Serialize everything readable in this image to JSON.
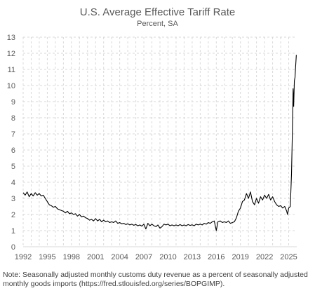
{
  "chart_data": {
    "type": "line",
    "title": "U.S. Average Effective Tariff Rate",
    "subtitle": "Percent, SA",
    "xlabel": "",
    "ylabel": "",
    "xlim": [
      1992,
      2026
    ],
    "ylim": [
      0,
      13
    ],
    "x_ticks": [
      "1992",
      "1995",
      "1998",
      "2001",
      "2004",
      "2007",
      "2010",
      "2013",
      "2016",
      "2019",
      "2022",
      "2025"
    ],
    "y_ticks": [
      "0",
      "1",
      "2",
      "3",
      "4",
      "5",
      "6",
      "7",
      "8",
      "9",
      "10",
      "11",
      "12",
      "13"
    ],
    "grid": "dashed",
    "line_color": "#000000",
    "series": [
      {
        "points": [
          [
            1992.0,
            3.35
          ],
          [
            1992.25,
            3.2
          ],
          [
            1992.5,
            3.4
          ],
          [
            1992.75,
            3.1
          ],
          [
            1993.0,
            3.3
          ],
          [
            1993.25,
            3.15
          ],
          [
            1993.5,
            3.35
          ],
          [
            1993.75,
            3.2
          ],
          [
            1994.0,
            3.3
          ],
          [
            1994.25,
            3.15
          ],
          [
            1994.5,
            3.2
          ],
          [
            1994.75,
            3.0
          ],
          [
            1995.0,
            2.8
          ],
          [
            1995.25,
            2.6
          ],
          [
            1995.5,
            2.55
          ],
          [
            1995.75,
            2.45
          ],
          [
            1996.0,
            2.5
          ],
          [
            1996.25,
            2.35
          ],
          [
            1996.5,
            2.3
          ],
          [
            1996.75,
            2.25
          ],
          [
            1997.0,
            2.2
          ],
          [
            1997.25,
            2.1
          ],
          [
            1997.5,
            2.2
          ],
          [
            1997.75,
            2.05
          ],
          [
            1998.0,
            2.1
          ],
          [
            1998.25,
            2.0
          ],
          [
            1998.5,
            2.05
          ],
          [
            1998.75,
            1.9
          ],
          [
            1999.0,
            2.0
          ],
          [
            1999.25,
            1.85
          ],
          [
            1999.5,
            1.9
          ],
          [
            1999.75,
            1.8
          ],
          [
            2000.0,
            1.75
          ],
          [
            2000.25,
            1.65
          ],
          [
            2000.5,
            1.7
          ],
          [
            2000.75,
            1.6
          ],
          [
            2001.0,
            1.75
          ],
          [
            2001.25,
            1.6
          ],
          [
            2001.5,
            1.7
          ],
          [
            2001.75,
            1.55
          ],
          [
            2002.0,
            1.65
          ],
          [
            2002.25,
            1.55
          ],
          [
            2002.5,
            1.6
          ],
          [
            2002.75,
            1.5
          ],
          [
            2003.0,
            1.55
          ],
          [
            2003.25,
            1.5
          ],
          [
            2003.5,
            1.6
          ],
          [
            2003.75,
            1.45
          ],
          [
            2004.0,
            1.5
          ],
          [
            2004.25,
            1.42
          ],
          [
            2004.5,
            1.45
          ],
          [
            2004.75,
            1.38
          ],
          [
            2005.0,
            1.42
          ],
          [
            2005.25,
            1.35
          ],
          [
            2005.5,
            1.4
          ],
          [
            2005.75,
            1.33
          ],
          [
            2006.0,
            1.38
          ],
          [
            2006.25,
            1.3
          ],
          [
            2006.5,
            1.35
          ],
          [
            2006.75,
            1.28
          ],
          [
            2007.0,
            1.4
          ],
          [
            2007.25,
            1.1
          ],
          [
            2007.5,
            1.45
          ],
          [
            2007.75,
            1.3
          ],
          [
            2008.0,
            1.4
          ],
          [
            2008.25,
            1.3
          ],
          [
            2008.5,
            1.25
          ],
          [
            2008.75,
            1.35
          ],
          [
            2009.0,
            1.15
          ],
          [
            2009.25,
            1.25
          ],
          [
            2009.5,
            1.4
          ],
          [
            2009.75,
            1.35
          ],
          [
            2010.0,
            1.4
          ],
          [
            2010.25,
            1.3
          ],
          [
            2010.5,
            1.35
          ],
          [
            2010.75,
            1.3
          ],
          [
            2011.0,
            1.35
          ],
          [
            2011.25,
            1.3
          ],
          [
            2011.5,
            1.38
          ],
          [
            2011.75,
            1.3
          ],
          [
            2012.0,
            1.35
          ],
          [
            2012.25,
            1.3
          ],
          [
            2012.5,
            1.38
          ],
          [
            2012.75,
            1.32
          ],
          [
            2013.0,
            1.36
          ],
          [
            2013.25,
            1.3
          ],
          [
            2013.5,
            1.4
          ],
          [
            2013.75,
            1.35
          ],
          [
            2014.0,
            1.4
          ],
          [
            2014.25,
            1.35
          ],
          [
            2014.5,
            1.45
          ],
          [
            2014.75,
            1.4
          ],
          [
            2015.0,
            1.5
          ],
          [
            2015.25,
            1.45
          ],
          [
            2015.5,
            1.55
          ],
          [
            2015.75,
            1.6
          ],
          [
            2016.0,
            1.0
          ],
          [
            2016.2,
            1.55
          ],
          [
            2016.5,
            1.6
          ],
          [
            2016.75,
            1.5
          ],
          [
            2017.0,
            1.55
          ],
          [
            2017.25,
            1.5
          ],
          [
            2017.5,
            1.6
          ],
          [
            2017.75,
            1.45
          ],
          [
            2018.0,
            1.5
          ],
          [
            2018.25,
            1.55
          ],
          [
            2018.5,
            1.8
          ],
          [
            2018.75,
            2.2
          ],
          [
            2019.0,
            2.4
          ],
          [
            2019.25,
            2.8
          ],
          [
            2019.5,
            2.9
          ],
          [
            2019.75,
            3.3
          ],
          [
            2020.0,
            3.0
          ],
          [
            2020.25,
            3.4
          ],
          [
            2020.5,
            2.8
          ],
          [
            2020.75,
            2.6
          ],
          [
            2021.0,
            3.0
          ],
          [
            2021.25,
            2.7
          ],
          [
            2021.5,
            3.1
          ],
          [
            2021.75,
            2.9
          ],
          [
            2022.0,
            3.2
          ],
          [
            2022.25,
            3.0
          ],
          [
            2022.5,
            3.25
          ],
          [
            2022.75,
            2.9
          ],
          [
            2023.0,
            3.1
          ],
          [
            2023.25,
            2.8
          ],
          [
            2023.5,
            2.6
          ],
          [
            2023.75,
            2.5
          ],
          [
            2024.0,
            2.55
          ],
          [
            2024.25,
            2.4
          ],
          [
            2024.5,
            2.5
          ],
          [
            2024.75,
            2.2
          ],
          [
            2024.85,
            2.0
          ],
          [
            2025.0,
            2.4
          ],
          [
            2025.2,
            2.5
          ],
          [
            2025.35,
            4.5
          ],
          [
            2025.45,
            7.0
          ],
          [
            2025.55,
            9.8
          ],
          [
            2025.62,
            8.7
          ],
          [
            2025.7,
            10.3
          ],
          [
            2025.78,
            10.5
          ],
          [
            2025.86,
            11.2
          ],
          [
            2025.95,
            11.9
          ]
        ]
      }
    ]
  },
  "note": "Note: Seasonally adjusted monthly customs duty revenue as a percent of seasonally adjusted monthly goods imports (https://fred.stlouisfed.org/series/BOPGIMP)."
}
